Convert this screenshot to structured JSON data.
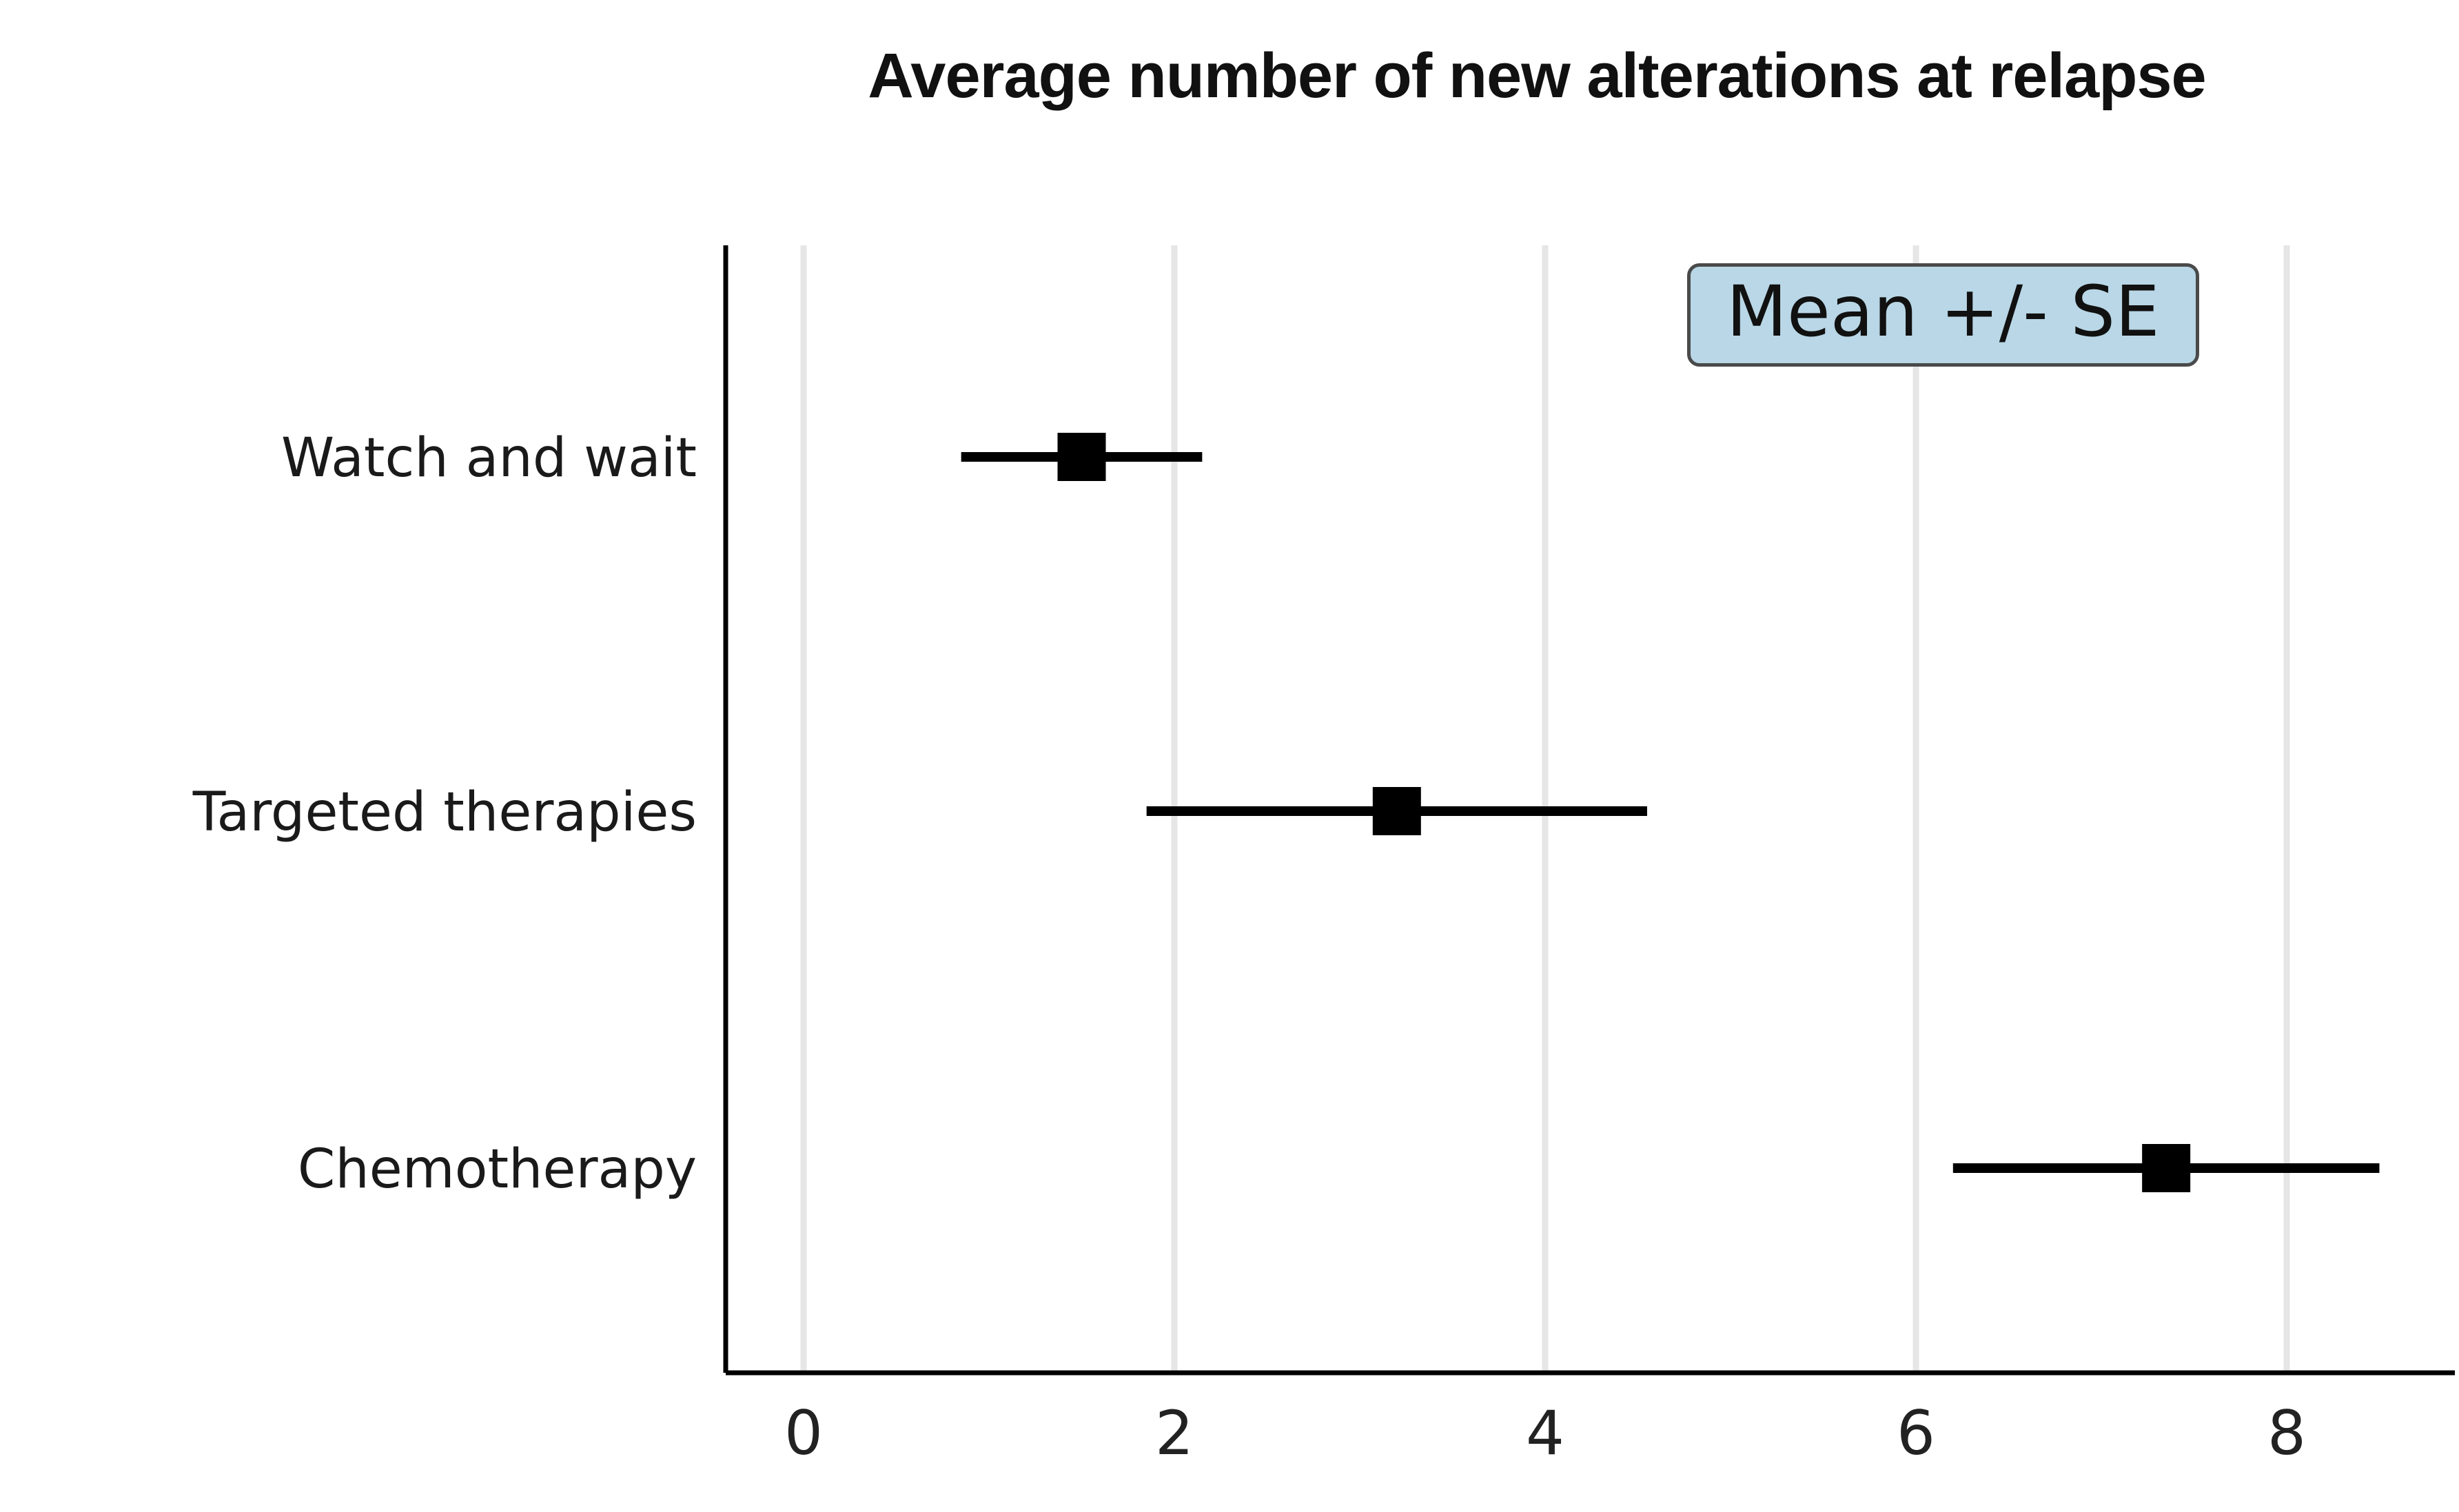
{
  "title": "Average number of new alterations at relapse",
  "legend": {
    "label": "Mean +/- SE",
    "position": "top-right"
  },
  "colors": {
    "marker": "#000000",
    "error_bar": "#000000",
    "grid": "#e6e6e6",
    "axis": "#000000",
    "tick_label": "#222222",
    "category_label": "#1a1a1a",
    "legend_fill": "#b9d7e6",
    "legend_border": "#4a4a4a",
    "title": "#111111",
    "background": "#ffffff"
  },
  "chart_data": {
    "type": "scatter",
    "subtype": "dot-plot-with-horizontal-error-bars",
    "orientation": "horizontal",
    "title": "Average number of new alterations at relapse",
    "legend": "Mean +/- SE",
    "legend_position": "top-right",
    "grid": true,
    "grid_axis": "x",
    "xlabel": "",
    "ylabel": "",
    "xticks": [
      0,
      2,
      4,
      6,
      8
    ],
    "xlim": [
      -0.45,
      8.95
    ],
    "categories": [
      "Watch and wait",
      "Targeted therapies",
      "Chemotherapy"
    ],
    "series": [
      {
        "name": "Watch and wait",
        "mean": 1.5,
        "se": 0.65,
        "lower": 0.85,
        "upper": 2.15
      },
      {
        "name": "Targeted therapies",
        "mean": 3.2,
        "se": 1.35,
        "lower": 1.85,
        "upper": 4.55
      },
      {
        "name": "Chemotherapy",
        "mean": 7.35,
        "se": 1.15,
        "lower": 6.2,
        "upper": 8.5
      }
    ]
  }
}
